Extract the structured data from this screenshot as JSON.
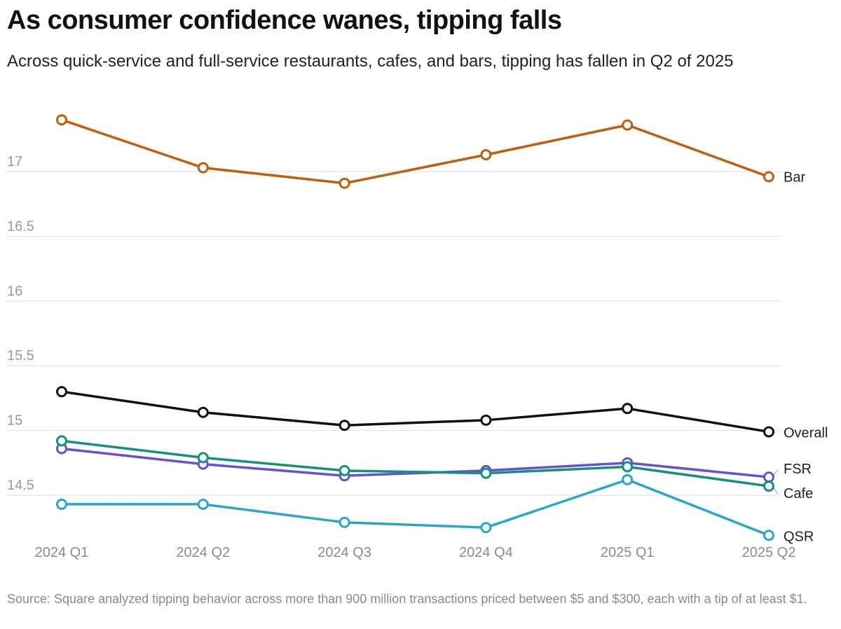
{
  "title": "As consumer confidence wanes, tipping falls",
  "subtitle": "Across quick-service and full-service restaurants, cafes, and bars, tipping has fallen in Q2 of 2025",
  "source": "Source: Square analyzed tipping behavior across more than 900 million transactions priced between $5 and $300, each with a tip of at least $1.",
  "chart_data": {
    "type": "line",
    "title": "As consumer confidence wanes, tipping falls",
    "xlabel": "",
    "ylabel": "",
    "categories": [
      "2024 Q1",
      "2024 Q2",
      "2024 Q3",
      "2024 Q4",
      "2025 Q1",
      "2025 Q2"
    ],
    "yticks": [
      14.5,
      15,
      15.5,
      16,
      16.5,
      17
    ],
    "ylim": [
      14.3,
      17.55
    ],
    "grid": true,
    "legend": "direct labels at right end of each line",
    "series": [
      {
        "name": "Bar",
        "color": "#c25e0b",
        "values": [
          17.4,
          17.03,
          16.91,
          17.13,
          17.36,
          16.96
        ]
      },
      {
        "name": "Overall",
        "color": "#111111",
        "values": [
          15.3,
          15.14,
          15.04,
          15.08,
          15.17,
          14.99
        ]
      },
      {
        "name": "FSR",
        "color": "#6351d8",
        "values": [
          14.86,
          14.74,
          14.65,
          14.69,
          14.75,
          14.64
        ]
      },
      {
        "name": "Cafe",
        "color": "#14917a",
        "values": [
          14.92,
          14.79,
          14.69,
          14.67,
          14.72,
          14.57
        ]
      },
      {
        "name": "QSR",
        "color": "#2ba6cb",
        "values": [
          14.43,
          14.43,
          14.29,
          14.25,
          14.62,
          14.19
        ]
      }
    ]
  }
}
